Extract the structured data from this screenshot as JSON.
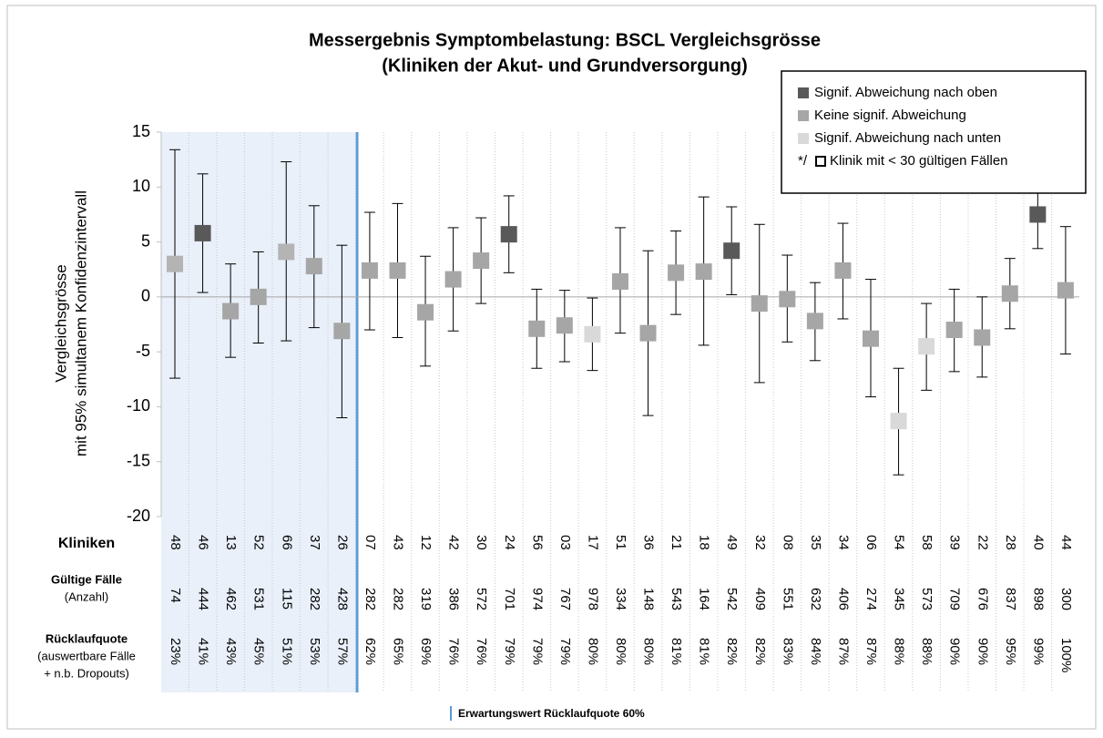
{
  "chart_data": {
    "type": "errorbar",
    "title": "Messergebnis Symptombelastung: BSCL Vergleichsgrösse",
    "subtitle": "(Kliniken der Akut- und Grundversorgung)",
    "y_label": [
      "Vergleichsgrösse",
      "mit 95% simultanem Konfidenzintervall"
    ],
    "ylim": [
      -20,
      15
    ],
    "yticks": [
      15,
      10,
      5,
      0,
      -5,
      -10,
      -15,
      -20
    ],
    "categories": [
      "48",
      "46",
      "13",
      "52",
      "66",
      "37",
      "26",
      "07",
      "43",
      "12",
      "42",
      "30",
      "24",
      "56",
      "03",
      "17",
      "51",
      "36",
      "21",
      "18",
      "49",
      "32",
      "08",
      "35",
      "34",
      "06",
      "54",
      "58",
      "39",
      "22",
      "28",
      "40",
      "44"
    ],
    "values": [
      3.0,
      5.8,
      -1.3,
      0.0,
      4.1,
      2.8,
      -3.1,
      2.4,
      2.4,
      -1.4,
      1.6,
      3.3,
      5.7,
      -2.9,
      -2.6,
      -3.4,
      1.4,
      -3.3,
      2.2,
      2.3,
      4.2,
      -0.6,
      -0.2,
      -2.2,
      2.4,
      -3.8,
      -11.3,
      -4.5,
      -3.0,
      -3.7,
      0.3,
      7.5,
      0.6
    ],
    "lower": [
      -7.4,
      0.4,
      -5.5,
      -4.2,
      -4.0,
      -2.8,
      -11.0,
      -3.0,
      -3.7,
      -6.3,
      -3.1,
      -0.6,
      2.2,
      -6.5,
      -5.9,
      -6.7,
      -3.3,
      -10.8,
      -1.6,
      -4.4,
      0.2,
      -7.8,
      -4.1,
      -5.8,
      -2.0,
      -9.1,
      -16.2,
      -8.5,
      -6.8,
      -7.3,
      -2.9,
      4.4,
      -5.2
    ],
    "upper": [
      13.4,
      11.2,
      3.0,
      4.1,
      12.3,
      8.3,
      4.7,
      7.7,
      8.5,
      3.7,
      6.3,
      7.2,
      9.2,
      0.7,
      0.6,
      -0.1,
      6.3,
      4.2,
      6.0,
      9.1,
      8.2,
      6.6,
      3.8,
      1.3,
      6.7,
      1.6,
      -6.5,
      -0.6,
      0.7,
      0.0,
      3.5,
      10.5,
      6.4
    ],
    "colors": [
      "#b4b4b4",
      "#595959",
      "#a6a6a6",
      "#a6a6a6",
      "#b4b4b4",
      "#a6a6a6",
      "#a6a6a6",
      "#a6a6a6",
      "#a6a6a6",
      "#a6a6a6",
      "#a6a6a6",
      "#a6a6a6",
      "#595959",
      "#a6a6a6",
      "#a6a6a6",
      "#d9d9d9",
      "#a6a6a6",
      "#a6a6a6",
      "#a6a6a6",
      "#a6a6a6",
      "#595959",
      "#a6a6a6",
      "#a6a6a6",
      "#a6a6a6",
      "#a6a6a6",
      "#a6a6a6",
      "#d9d9d9",
      "#d9d9d9",
      "#a6a6a6",
      "#a6a6a6",
      "#a6a6a6",
      "#595959",
      "#a6a6a6"
    ],
    "cases": [
      74,
      444,
      462,
      531,
      115,
      282,
      428,
      282,
      282,
      319,
      386,
      572,
      701,
      974,
      767,
      978,
      334,
      148,
      543,
      164,
      542,
      409,
      551,
      632,
      406,
      274,
      345,
      573,
      709,
      676,
      837,
      898,
      300
    ],
    "rates": [
      "23%",
      "41%",
      "43%",
      "45%",
      "51%",
      "53%",
      "57%",
      "62%",
      "65%",
      "69%",
      "76%",
      "76%",
      "79%",
      "79%",
      "79%",
      "80%",
      "80%",
      "80%",
      "81%",
      "81%",
      "82%",
      "82%",
      "83%",
      "84%",
      "87%",
      "87%",
      "88%",
      "88%",
      "90%",
      "90%",
      "95%",
      "99%",
      "100%"
    ],
    "row_labels": {
      "clinics": "Kliniken",
      "cases": "Gültige Fälle",
      "cases_sub": "(Anzahl)",
      "rates": "Rücklaufquote",
      "rates_sub1": "(auswertbare Fälle",
      "rates_sub2": "+ n.b. Dropouts)"
    },
    "legend": [
      {
        "name": "Signif. Abweichung nach oben",
        "color": "#595959"
      },
      {
        "name": "Keine signif. Abweichung",
        "color": "#a6a6a6"
      },
      {
        "name": "Signif. Abweichung nach unten",
        "color": "#d9d9d9"
      }
    ],
    "legend_note_prefix": "*/",
    "legend_note": "Klinik mit < 30 gültigen Fällen",
    "footer": "Erwartungswert Rücklaufquote 60%"
  }
}
